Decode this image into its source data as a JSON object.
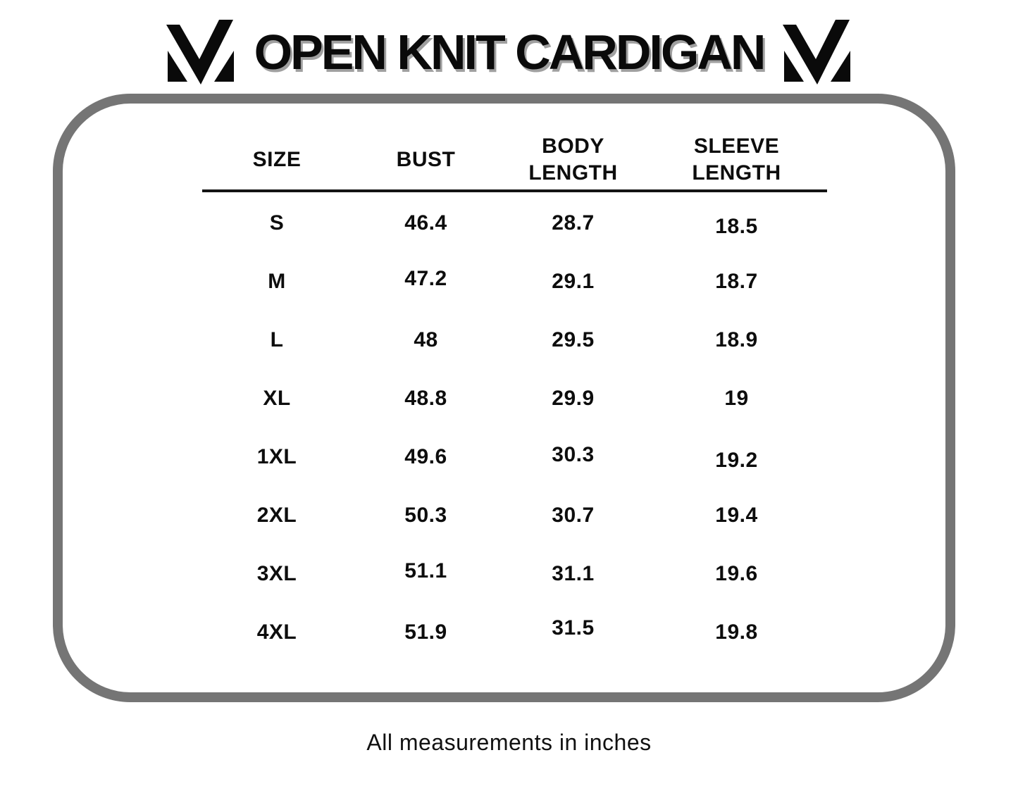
{
  "header": {
    "title": "OPEN KNIT CARDIGAN",
    "logo": "m-monogram"
  },
  "size_chart": {
    "columns": [
      "SIZE",
      "BUST",
      "BODY\nLENGTH",
      "SLEEVE\nLENGTH"
    ],
    "rows": [
      [
        "S",
        "46.4",
        "28.7",
        "18.5"
      ],
      [
        "M",
        "47.2",
        "29.1",
        "18.7"
      ],
      [
        "L",
        "48",
        "29.5",
        "18.9"
      ],
      [
        "XL",
        "48.8",
        "29.9",
        "19"
      ],
      [
        "1XL",
        "49.6",
        "30.3",
        "19.2"
      ],
      [
        "2XL",
        "50.3",
        "30.7",
        "19.4"
      ],
      [
        "3XL",
        "51.1",
        "31.1",
        "19.6"
      ],
      [
        "4XL",
        "51.9",
        "31.5",
        "19.8"
      ]
    ]
  },
  "footer": {
    "note": "All measurements in inches"
  },
  "colors": {
    "border_gray": "#757575",
    "text_black": "#0d0d0d",
    "title_shadow": "#a0a0a0"
  }
}
